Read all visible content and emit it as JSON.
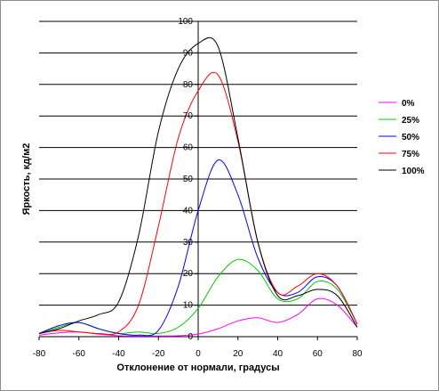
{
  "chart_data": {
    "type": "line",
    "title": "",
    "xlabel": "Отклонение от нормали, градусы",
    "ylabel": "Яркость, кд/м2",
    "xlim": [
      -80,
      80
    ],
    "ylim": [
      0,
      100
    ],
    "x_ticks": [
      "-80",
      "-60",
      "-40",
      "-20",
      "0",
      "20",
      "40",
      "60",
      "80"
    ],
    "y_ticks": [
      "0",
      "10",
      "20",
      "30",
      "40",
      "50",
      "60",
      "70",
      "80",
      "90",
      "100"
    ],
    "grid": "horizontal",
    "legend_position": "right",
    "x": [
      -80,
      -70,
      -60,
      -50,
      -40,
      -30,
      -20,
      -10,
      0,
      10,
      20,
      30,
      40,
      50,
      60,
      70,
      80
    ],
    "series": [
      {
        "name": "0%",
        "color": "#ff00ff",
        "values": [
          0.5,
          1.2,
          1.5,
          0.8,
          0.3,
          0.2,
          0.2,
          0.3,
          0.8,
          2.5,
          5,
          6,
          4.5,
          7,
          12,
          10,
          3
        ]
      },
      {
        "name": "25%",
        "color": "#00cc00",
        "values": [
          1,
          3,
          4.5,
          2.5,
          1,
          1.5,
          1,
          3,
          9,
          19,
          24.5,
          21,
          12,
          12,
          17.5,
          15,
          4
        ]
      },
      {
        "name": "50%",
        "color": "#0000ff",
        "values": [
          1,
          3.5,
          4.5,
          2.5,
          1,
          0.5,
          2,
          16,
          40,
          56,
          45,
          25,
          14,
          14,
          19,
          16,
          4
        ]
      },
      {
        "name": "75%",
        "color": "#ff0000",
        "values": [
          1,
          2,
          1.5,
          1,
          1.5,
          10,
          35,
          63,
          78,
          83,
          62,
          30,
          14,
          16,
          20,
          16,
          4
        ]
      },
      {
        "name": "100%",
        "color": "#000000",
        "values": [
          1,
          2.5,
          5,
          7,
          11,
          32,
          65,
          85,
          93,
          92,
          63,
          30,
          13,
          13,
          15,
          13,
          3
        ]
      }
    ]
  }
}
